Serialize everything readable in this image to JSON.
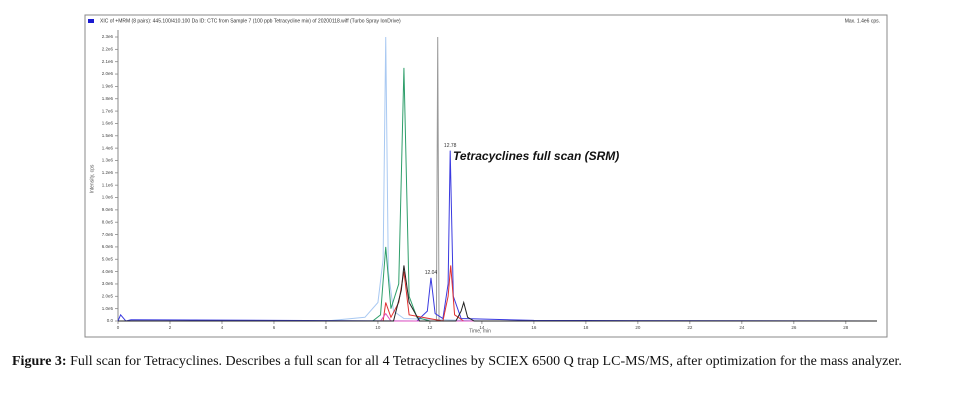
{
  "chart_data": {
    "type": "line",
    "title": "XIC of +MRM (8 pairs): 445.100/410.100 Da ID: CTC from Sample 7 (100 ppb Tetracycline mix) of 20200118.wiff (Turbo Spray IonDrive)",
    "subtitle": "Max. 1.4e6 cps.",
    "xlabel": "Time, min",
    "ylabel": "Intensity, cps",
    "annotations": [
      "12.78",
      "12.04",
      "Tetracyclines full scan (SRM)"
    ],
    "xlim": [
      0,
      29.2
    ],
    "xticks": [
      0,
      2,
      4,
      6,
      8,
      10,
      12,
      14,
      16,
      18,
      20,
      22,
      24,
      26,
      28
    ],
    "ylim": [
      0,
      2300000
    ],
    "yticks": [
      {
        "value": 0,
        "label": "0.0"
      },
      {
        "value": 100000,
        "label": "1.0e5"
      },
      {
        "value": 200000,
        "label": "2.0e5"
      },
      {
        "value": 300000,
        "label": "3.0e5"
      },
      {
        "value": 400000,
        "label": "4.0e5"
      },
      {
        "value": 500000,
        "label": "5.0e5"
      },
      {
        "value": 600000,
        "label": "6.0e5"
      },
      {
        "value": 700000,
        "label": "7.0e5"
      },
      {
        "value": 800000,
        "label": "8.0e5"
      },
      {
        "value": 900000,
        "label": "9.0e5"
      },
      {
        "value": 1000000,
        "label": "1.0e6"
      },
      {
        "value": 1100000,
        "label": "1.1e6"
      },
      {
        "value": 1200000,
        "label": "1.2e6"
      },
      {
        "value": 1300000,
        "label": "1.3e6"
      },
      {
        "value": 1400000,
        "label": "1.4e6"
      },
      {
        "value": 1500000,
        "label": "1.5e6"
      },
      {
        "value": 1600000,
        "label": "1.6e6"
      },
      {
        "value": 1700000,
        "label": "1.7e6"
      },
      {
        "value": 1800000,
        "label": "1.8e6"
      },
      {
        "value": 1900000,
        "label": "1.9e6"
      },
      {
        "value": 2000000,
        "label": "2.0e6"
      },
      {
        "value": 2100000,
        "label": "2.1e6"
      },
      {
        "value": 2200000,
        "label": "2.2e6"
      },
      {
        "value": 2300000,
        "label": "2.3e6"
      }
    ],
    "series": [
      {
        "color": "#a9c9f2",
        "x": [
          0,
          8,
          9.5,
          10.0,
          10.2,
          10.3,
          10.4,
          10.6,
          11,
          14,
          29.2
        ],
        "values": [
          0,
          0,
          30000,
          150000,
          500000,
          2300000,
          400000,
          80000,
          20000,
          0,
          0
        ]
      },
      {
        "color": "#999999",
        "x": [
          0,
          12.25,
          12.3,
          12.35,
          29.2
        ],
        "values": [
          0,
          0,
          2300000,
          0,
          0
        ]
      },
      {
        "color": "#2e9e6a",
        "x": [
          0,
          9.8,
          10.1,
          10.3,
          10.5,
          10.8,
          11.0,
          11.2,
          11.5,
          12,
          29.2
        ],
        "values": [
          0,
          0,
          50000,
          600000,
          100000,
          300000,
          2050000,
          200000,
          30000,
          0,
          0
        ]
      },
      {
        "color": "#3a3ae0",
        "x": [
          0,
          0.1,
          0.3,
          0.5,
          11.5,
          11.9,
          12.04,
          12.2,
          12.5,
          12.7,
          12.78,
          12.9,
          13.2,
          16,
          29.2
        ],
        "values": [
          0,
          50000,
          0,
          10000,
          0,
          80000,
          350000,
          60000,
          20000,
          300000,
          1380000,
          200000,
          20000,
          5000,
          0
        ]
      },
      {
        "color": "#e03030",
        "x": [
          0,
          10.2,
          10.3,
          10.5,
          10.8,
          11.0,
          11.2,
          12.5,
          12.7,
          12.8,
          12.95,
          13.3,
          29.2
        ],
        "values": [
          0,
          0,
          150000,
          30000,
          150000,
          400000,
          50000,
          0,
          200000,
          450000,
          50000,
          0,
          0
        ]
      },
      {
        "color": "#e050c0",
        "x": [
          0,
          10.1,
          10.3,
          10.5,
          29.2
        ],
        "values": [
          0,
          0,
          60000,
          0,
          0
        ]
      },
      {
        "color": "#222222",
        "x": [
          0,
          10.6,
          10.9,
          11.0,
          11.2,
          11.6,
          13.0,
          13.2,
          13.3,
          13.45,
          13.7,
          29.2
        ],
        "values": [
          0,
          0,
          250000,
          450000,
          150000,
          0,
          0,
          80000,
          150000,
          30000,
          0,
          0
        ]
      }
    ]
  },
  "caption": {
    "label": "Figure 3:",
    "text": "Full scan for Tetracyclines. Describes a full scan for all 4 Tetracyclines by SCIEX 6500 Q trap LC-MS/MS, after optimization for the mass analyzer."
  }
}
